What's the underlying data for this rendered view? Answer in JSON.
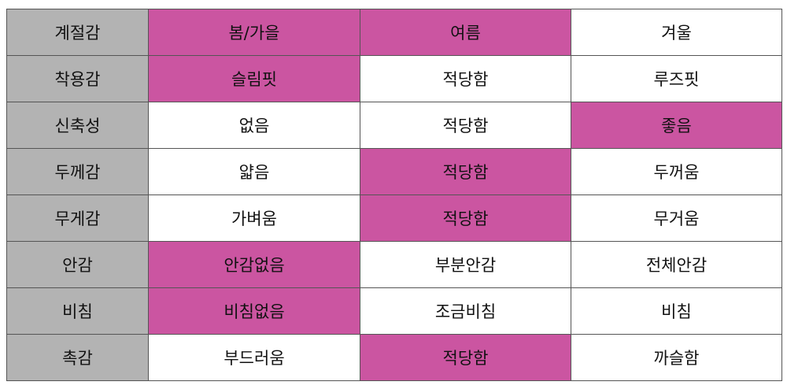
{
  "colors": {
    "label_bg": "#b3b3b3",
    "highlight_bg": "#cb55a1",
    "normal_bg": "#ffffff"
  },
  "rows": [
    {
      "label": "계절감",
      "options": [
        "봄/가을",
        "여름",
        "겨울"
      ],
      "highlighted": [
        0,
        1
      ]
    },
    {
      "label": "착용감",
      "options": [
        "슬림핏",
        "적당함",
        "루즈핏"
      ],
      "highlighted": [
        0
      ]
    },
    {
      "label": "신축성",
      "options": [
        "없음",
        "적당함",
        "좋음"
      ],
      "highlighted": [
        2
      ]
    },
    {
      "label": "두께감",
      "options": [
        "얇음",
        "적당함",
        "두꺼움"
      ],
      "highlighted": [
        1
      ]
    },
    {
      "label": "무게감",
      "options": [
        "가벼움",
        "적당함",
        "무거움"
      ],
      "highlighted": [
        1
      ]
    },
    {
      "label": "안감",
      "options": [
        "안감없음",
        "부분안감",
        "전체안감"
      ],
      "highlighted": [
        0
      ]
    },
    {
      "label": "비침",
      "options": [
        "비침없음",
        "조금비침",
        "비침"
      ],
      "highlighted": [
        0
      ]
    },
    {
      "label": "촉감",
      "options": [
        "부드러움",
        "적당함",
        "까슬함"
      ],
      "highlighted": [
        1
      ]
    }
  ]
}
